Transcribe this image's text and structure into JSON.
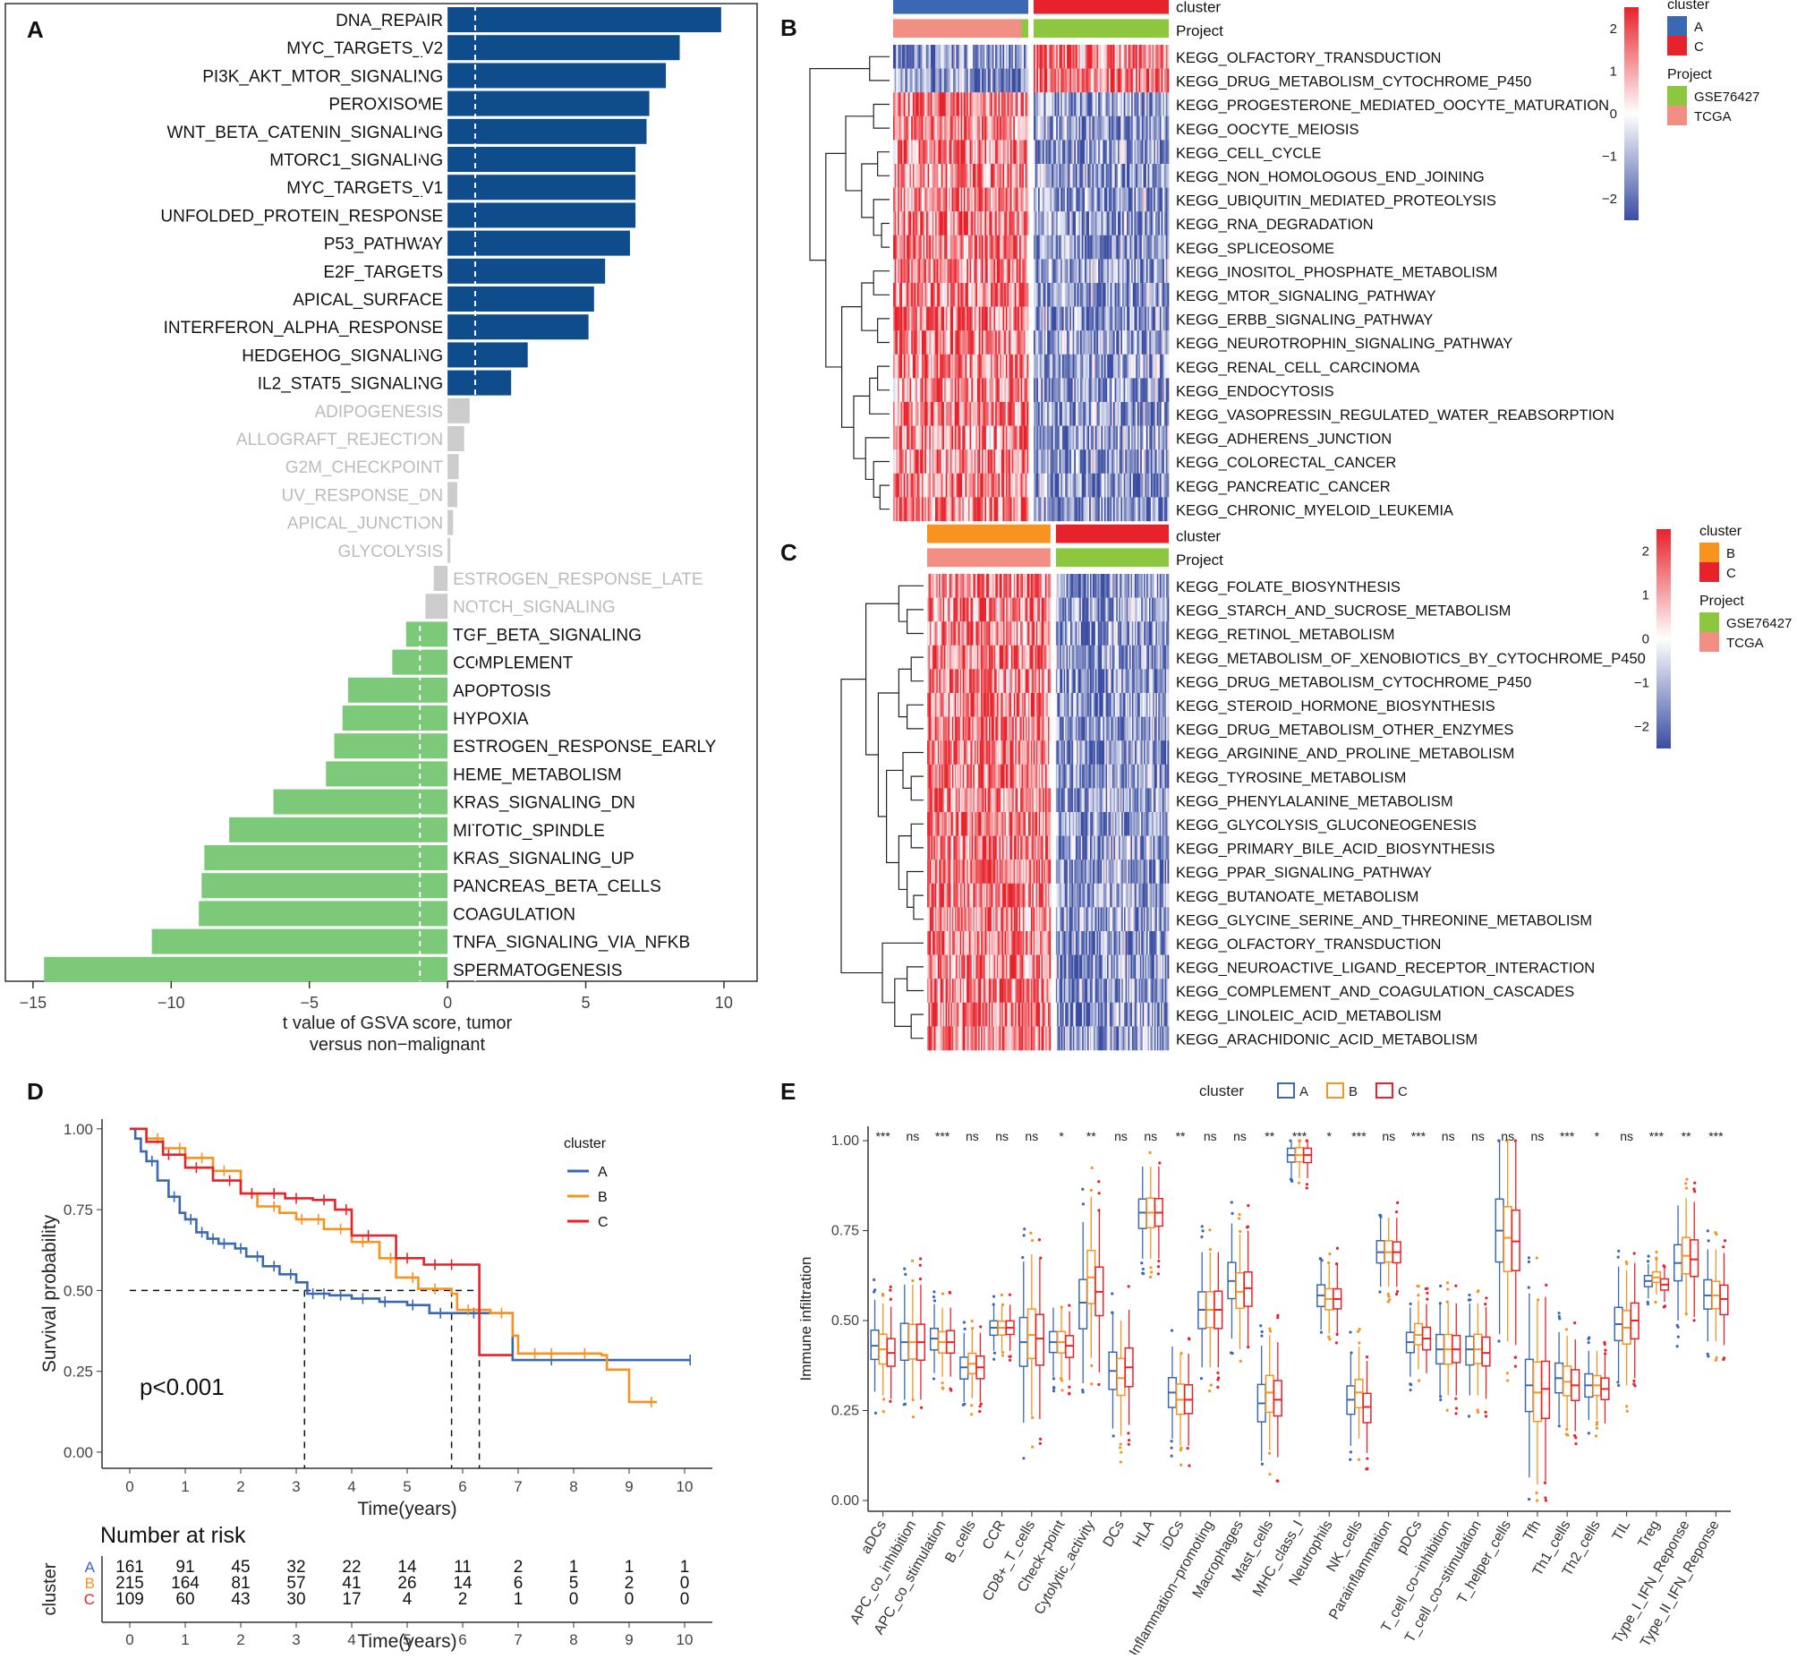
{
  "colors": {
    "pos_bar": "#0F4C8C",
    "neg_bar": "#7CC97A",
    "nonsig_bar": "#CCCCCC",
    "nonsig_text": "#BBBBBB",
    "heat_high": "#E8222B",
    "heat_mid": "#FFFFFF",
    "heat_low": "#3A4DA2",
    "cluster_A": "#3B68B3",
    "cluster_B": "#F7931E",
    "cluster_C": "#E8222B",
    "project_GSE76427": "#8DC63F",
    "project_TCGA": "#F28F84"
  },
  "panels": {
    "A": {
      "letter": "A"
    },
    "B": {
      "letter": "B"
    },
    "C": {
      "letter": "C"
    },
    "D": {
      "letter": "D"
    },
    "E": {
      "letter": "E"
    }
  },
  "chart_data": [
    {
      "panel": "A",
      "type": "bar",
      "orientation": "horizontal",
      "categories": [
        "DNA_REPAIR",
        "MYC_TARGETS_V2",
        "PI3K_AKT_MTOR_SIGNALING",
        "PEROXISOME",
        "WNT_BETA_CATENIN_SIGNALING",
        "MTORC1_SIGNALING",
        "MYC_TARGETS_V1",
        "UNFOLDED_PROTEIN_RESPONSE",
        "P53_PATHWAY",
        "E2F_TARGETS",
        "APICAL_SURFACE",
        "INTERFERON_ALPHA_RESPONSE",
        "HEDGEHOG_SIGNALING",
        "IL2_STAT5_SIGNALING",
        "ADIPOGENESIS",
        "ALLOGRAFT_REJECTION",
        "G2M_CHECKPOINT",
        "UV_RESPONSE_DN",
        "APICAL_JUNCTION",
        "GLYCOLYSIS",
        "ESTROGEN_RESPONSE_LATE",
        "NOTCH_SIGNALING",
        "TGF_BETA_SIGNALING",
        "COMPLEMENT",
        "APOPTOSIS",
        "HYPOXIA",
        "ESTROGEN_RESPONSE_EARLY",
        "HEME_METABOLISM",
        "KRAS_SIGNALING_DN",
        "MITOTIC_SPINDLE",
        "KRAS_SIGNALING_UP",
        "PANCREAS_BETA_CELLS",
        "COAGULATION",
        "TNFA_SIGNALING_VIA_NFKB",
        "SPERMATOGENESIS"
      ],
      "values": [
        9.9,
        8.4,
        7.9,
        7.3,
        7.2,
        6.8,
        6.8,
        6.8,
        6.6,
        5.7,
        5.3,
        5.1,
        2.9,
        2.3,
        0.8,
        0.6,
        0.4,
        0.35,
        0.2,
        0.1,
        -0.5,
        -0.8,
        -1.5,
        -2.0,
        -3.6,
        -3.8,
        -4.1,
        -4.4,
        -6.3,
        -7.9,
        -8.8,
        -8.9,
        -9.0,
        -10.7,
        -14.6
      ],
      "groups": [
        "pos",
        "pos",
        "pos",
        "pos",
        "pos",
        "pos",
        "pos",
        "pos",
        "pos",
        "pos",
        "pos",
        "pos",
        "pos",
        "pos",
        "ns",
        "ns",
        "ns",
        "ns",
        "ns",
        "ns",
        "ns",
        "ns",
        "neg",
        "neg",
        "neg",
        "neg",
        "neg",
        "neg",
        "neg",
        "neg",
        "neg",
        "neg",
        "neg",
        "neg",
        "neg"
      ],
      "xlim": [
        -16,
        11.2
      ],
      "xticks": [
        -15,
        -10,
        -5,
        0,
        5,
        10
      ],
      "xtick_labels": [
        "−15",
        "−10",
        "−5",
        "0",
        "5",
        "10"
      ],
      "threshold_lines": [
        -1,
        1
      ],
      "xlabel_line1": "t value of GSVA score, tumor",
      "xlabel_line2": "versus non−malignant"
    },
    {
      "panel": "B",
      "type": "heatmap",
      "rows": [
        "KEGG_OLFACTORY_TRANSDUCTION",
        "KEGG_DRUG_METABOLISM_CYTOCHROME_P450",
        "KEGG_PROGESTERONE_MEDIATED_OOCYTE_MATURATION",
        "KEGG_OOCYTE_MEIOSIS",
        "KEGG_CELL_CYCLE",
        "KEGG_NON_HOMOLOGOUS_END_JOINING",
        "KEGG_UBIQUITIN_MEDIATED_PROTEOLYSIS",
        "KEGG_RNA_DEGRADATION",
        "KEGG_SPLICEOSOME",
        "KEGG_INOSITOL_PHOSPHATE_METABOLISM",
        "KEGG_MTOR_SIGNALING_PATHWAY",
        "KEGG_ERBB_SIGNALING_PATHWAY",
        "KEGG_NEUROTROPHIN_SIGNALING_PATHWAY",
        "KEGG_RENAL_CELL_CARCINOMA",
        "KEGG_ENDOCYTOSIS",
        "KEGG_VASOPRESSIN_REGULATED_WATER_REABSORPTION",
        "KEGG_ADHERENS_JUNCTION",
        "KEGG_COLORECTAL_CANCER",
        "KEGG_PANCREATIC_CANCER",
        "KEGG_CHRONIC_MYELOID_LEUKEMIA"
      ],
      "row_direction": [
        -1,
        -1,
        1,
        1,
        1,
        1,
        1,
        1,
        1,
        1,
        1,
        1,
        1,
        1,
        1,
        1,
        1,
        1,
        1,
        1
      ],
      "annotation_labels": [
        "cluster",
        "Project"
      ],
      "clusters": [
        "A",
        "C"
      ],
      "cluster_split": 0.5,
      "project_split_in_first": 0.95,
      "legend_scale": [
        "2",
        "1",
        "0",
        "−1",
        "−2"
      ],
      "legend_cluster_title": "cluster",
      "legend_cluster_items": [
        "A",
        "C"
      ],
      "legend_project_title": "Project",
      "legend_project_items": [
        "GSE76427",
        "TCGA"
      ]
    },
    {
      "panel": "C",
      "type": "heatmap",
      "rows": [
        "KEGG_FOLATE_BIOSYNTHESIS",
        "KEGG_STARCH_AND_SUCROSE_METABOLISM",
        "KEGG_RETINOL_METABOLISM",
        "KEGG_METABOLISM_OF_XENOBIOTICS_BY_CYTOCHROME_P450",
        "KEGG_DRUG_METABOLISM_CYTOCHROME_P450",
        "KEGG_STEROID_HORMONE_BIOSYNTHESIS",
        "KEGG_DRUG_METABOLISM_OTHER_ENZYMES",
        "KEGG_ARGININE_AND_PROLINE_METABOLISM",
        "KEGG_TYROSINE_METABOLISM",
        "KEGG_PHENYLALANINE_METABOLISM",
        "KEGG_GLYCOLYSIS_GLUCONEOGENESIS",
        "KEGG_PRIMARY_BILE_ACID_BIOSYNTHESIS",
        "KEGG_PPAR_SIGNALING_PATHWAY",
        "KEGG_BUTANOATE_METABOLISM",
        "KEGG_GLYCINE_SERINE_AND_THREONINE_METABOLISM",
        "KEGG_OLFACTORY_TRANSDUCTION",
        "KEGG_NEUROACTIVE_LIGAND_RECEPTOR_INTERACTION",
        "KEGG_COMPLEMENT_AND_COAGULATION_CASCADES",
        "KEGG_LINOLEIC_ACID_METABOLISM",
        "KEGG_ARACHIDONIC_ACID_METABOLISM"
      ],
      "row_direction": [
        1,
        1,
        1,
        1,
        1,
        1,
        1,
        1,
        1,
        1,
        1,
        1,
        1,
        1,
        1,
        1,
        1,
        1,
        1,
        1
      ],
      "annotation_labels": [
        "cluster",
        "Project"
      ],
      "clusters": [
        "B",
        "C"
      ],
      "cluster_split": 0.52,
      "project_split_in_first": 1.0,
      "legend_scale": [
        "2",
        "1",
        "0",
        "−1",
        "−2"
      ],
      "legend_cluster_title": "cluster",
      "legend_cluster_items": [
        "B",
        "C"
      ],
      "legend_project_title": "Project",
      "legend_project_items": [
        "GSE76427",
        "TCGA"
      ]
    },
    {
      "panel": "D",
      "type": "line",
      "subtype": "kaplan-meier",
      "ylabel": "Survival probability",
      "xlabel": "Time(years)",
      "xlim": [
        -0.5,
        10.5
      ],
      "ylim": [
        -0.05,
        1.03
      ],
      "xticks": [
        0,
        1,
        2,
        3,
        4,
        5,
        6,
        7,
        8,
        9,
        10
      ],
      "yticks": [
        0.0,
        0.25,
        0.5,
        0.75,
        1.0
      ],
      "ytick_labels": [
        "0.00",
        "0.25",
        "0.50",
        "0.75",
        "1.00"
      ],
      "pvalue_text": "p<0.001",
      "legend_title": "cluster",
      "series": [
        {
          "name": "A",
          "color": "#3B68B3",
          "points": [
            [
              0,
              1.0
            ],
            [
              0.1,
              0.97
            ],
            [
              0.2,
              0.93
            ],
            [
              0.3,
              0.9
            ],
            [
              0.5,
              0.84
            ],
            [
              0.7,
              0.79
            ],
            [
              0.9,
              0.74
            ],
            [
              1.0,
              0.72
            ],
            [
              1.2,
              0.68
            ],
            [
              1.4,
              0.66
            ],
            [
              1.6,
              0.645
            ],
            [
              1.9,
              0.63
            ],
            [
              2.1,
              0.605
            ],
            [
              2.4,
              0.575
            ],
            [
              2.7,
              0.55
            ],
            [
              3.0,
              0.525
            ],
            [
              3.2,
              0.49
            ],
            [
              3.6,
              0.485
            ],
            [
              4.0,
              0.475
            ],
            [
              4.5,
              0.465
            ],
            [
              5.0,
              0.455
            ],
            [
              5.4,
              0.43
            ],
            [
              6.0,
              0.43
            ],
            [
              6.4,
              0.43
            ],
            [
              6.6,
              0.43
            ],
            [
              6.9,
              0.285
            ],
            [
              10.1,
              0.285
            ]
          ],
          "censors": [
            0.4,
            0.8,
            1.1,
            1.3,
            1.5,
            1.7,
            2.0,
            2.3,
            2.6,
            2.9,
            3.3,
            3.5,
            3.8,
            4.2,
            4.6,
            5.1,
            5.6,
            6.2,
            7.6,
            10.1
          ]
        },
        {
          "name": "B",
          "color": "#F7931E",
          "points": [
            [
              0,
              1.0
            ],
            [
              0.3,
              0.97
            ],
            [
              0.6,
              0.94
            ],
            [
              1.0,
              0.91
            ],
            [
              1.5,
              0.87
            ],
            [
              2.0,
              0.8
            ],
            [
              2.3,
              0.76
            ],
            [
              2.7,
              0.74
            ],
            [
              3.0,
              0.72
            ],
            [
              3.5,
              0.69
            ],
            [
              4.0,
              0.65
            ],
            [
              4.5,
              0.6
            ],
            [
              4.8,
              0.54
            ],
            [
              5.2,
              0.505
            ],
            [
              5.8,
              0.49
            ],
            [
              5.9,
              0.44
            ],
            [
              6.5,
              0.43
            ],
            [
              6.9,
              0.36
            ],
            [
              7.0,
              0.305
            ],
            [
              8.5,
              0.3
            ],
            [
              8.6,
              0.255
            ],
            [
              8.9,
              0.255
            ],
            [
              9.0,
              0.155
            ],
            [
              9.5,
              0.155
            ]
          ],
          "censors": [
            0.5,
            0.9,
            1.3,
            1.7,
            2.2,
            2.6,
            3.1,
            3.4,
            3.8,
            4.2,
            4.7,
            5.1,
            5.5,
            6.1,
            6.7,
            7.3,
            7.6,
            8.2,
            9.4
          ]
        },
        {
          "name": "C",
          "color": "#E8222B",
          "points": [
            [
              0,
              1.0
            ],
            [
              0.3,
              0.96
            ],
            [
              0.6,
              0.92
            ],
            [
              1.0,
              0.88
            ],
            [
              1.5,
              0.84
            ],
            [
              2.0,
              0.8
            ],
            [
              2.4,
              0.8
            ],
            [
              2.8,
              0.785
            ],
            [
              3.3,
              0.78
            ],
            [
              3.7,
              0.75
            ],
            [
              4.0,
              0.67
            ],
            [
              4.6,
              0.67
            ],
            [
              4.8,
              0.6
            ],
            [
              5.3,
              0.58
            ],
            [
              6.0,
              0.58
            ],
            [
              6.3,
              0.3
            ],
            [
              6.9,
              0.3
            ]
          ],
          "censors": [
            0.7,
            1.2,
            1.8,
            2.2,
            2.6,
            3.0,
            3.5,
            3.9,
            4.3,
            5.0,
            5.5,
            5.8
          ]
        }
      ],
      "median_lines": [
        3.15,
        5.8,
        6.3
      ],
      "median_y": 0.5,
      "risk_table": {
        "title": "Number at risk",
        "ylabel": "cluster",
        "xlabel": "Time(years)",
        "rows": [
          {
            "name": "A",
            "color": "#3B68B3",
            "values": [
              "161",
              "91",
              "45",
              "32",
              "22",
              "14",
              "11",
              "2",
              "1",
              "1",
              "1"
            ]
          },
          {
            "name": "B",
            "color": "#F7931E",
            "values": [
              "215",
              "164",
              "81",
              "57",
              "41",
              "26",
              "14",
              "6",
              "5",
              "2",
              "0"
            ]
          },
          {
            "name": "C",
            "color": "#E8222B",
            "values": [
              "109",
              "60",
              "43",
              "30",
              "17",
              "4",
              "2",
              "1",
              "0",
              "0",
              "0"
            ]
          }
        ]
      }
    },
    {
      "panel": "E",
      "type": "box",
      "ylabel": "Immune infiltration",
      "ylim": [
        -0.03,
        1.04
      ],
      "yticks": [
        0.0,
        0.25,
        0.5,
        0.75,
        1.0
      ],
      "ytick_labels": [
        "0.00",
        "0.25",
        "0.50",
        "0.75",
        "1.00"
      ],
      "legend_title": "cluster",
      "series_names": [
        "A",
        "B",
        "C"
      ],
      "series_colors": [
        "#3B68B3",
        "#F7931E",
        "#E8222B"
      ],
      "categories": [
        "aDCs",
        "APC_co_inhibition",
        "APC_co_stimulation",
        "B_cells",
        "CCR",
        "CD8+_T_cells",
        "Check−point",
        "Cytolytic_activity",
        "DCs",
        "HLA",
        "iDCs",
        "Inflammation−promoting",
        "Macrophages",
        "Mast_cells",
        "MHC_class_I",
        "Neutrophils",
        "NK_cells",
        "Parainflammation",
        "pDCs",
        "T_cell_co−inhibition",
        "T_cell_co−stimulation",
        "T_helper_cells",
        "Tfh",
        "Th1_cells",
        "Th2_cells",
        "TIL",
        "Treg",
        "Type_I_IFN_Reponse",
        "Type_II_IFN_Reponse"
      ],
      "significance": [
        "***",
        "ns",
        "***",
        "ns",
        "ns",
        "ns",
        "*",
        "**",
        "ns",
        "ns",
        "**",
        "ns",
        "ns",
        "**",
        "***",
        "*",
        "***",
        "ns",
        "***",
        "ns",
        "ns",
        "ns",
        "ns",
        "***",
        "*",
        "ns",
        "***",
        "**",
        "***"
      ],
      "medians": [
        [
          0.43,
          0.42,
          0.41
        ],
        [
          0.44,
          0.44,
          0.44
        ],
        [
          0.45,
          0.44,
          0.44
        ],
        [
          0.37,
          0.38,
          0.37
        ],
        [
          0.48,
          0.48,
          0.48
        ],
        [
          0.44,
          0.46,
          0.45
        ],
        [
          0.44,
          0.44,
          0.43
        ],
        [
          0.55,
          0.62,
          0.58
        ],
        [
          0.36,
          0.34,
          0.37
        ],
        [
          0.8,
          0.8,
          0.8
        ],
        [
          0.3,
          0.28,
          0.28
        ],
        [
          0.53,
          0.53,
          0.53
        ],
        [
          0.61,
          0.58,
          0.59
        ],
        [
          0.27,
          0.3,
          0.28
        ],
        [
          0.96,
          0.96,
          0.96
        ],
        [
          0.57,
          0.56,
          0.56
        ],
        [
          0.28,
          0.3,
          0.26
        ],
        [
          0.69,
          0.69,
          0.69
        ],
        [
          0.44,
          0.46,
          0.45
        ],
        [
          0.42,
          0.42,
          0.42
        ],
        [
          0.42,
          0.42,
          0.41
        ],
        [
          0.75,
          0.73,
          0.72
        ],
        [
          0.32,
          0.3,
          0.31
        ],
        [
          0.34,
          0.33,
          0.32
        ],
        [
          0.32,
          0.32,
          0.31
        ],
        [
          0.49,
          0.48,
          0.5
        ],
        [
          0.61,
          0.62,
          0.6
        ],
        [
          0.66,
          0.68,
          0.67
        ],
        [
          0.57,
          0.57,
          0.56
        ]
      ],
      "iqr_half": [
        0.04,
        0.05,
        0.03,
        0.03,
        0.02,
        0.07,
        0.03,
        0.07,
        0.05,
        0.04,
        0.04,
        0.05,
        0.05,
        0.05,
        0.02,
        0.03,
        0.04,
        0.03,
        0.03,
        0.04,
        0.04,
        0.09,
        0.08,
        0.04,
        0.03,
        0.05,
        0.015,
        0.05,
        0.04
      ]
    }
  ]
}
